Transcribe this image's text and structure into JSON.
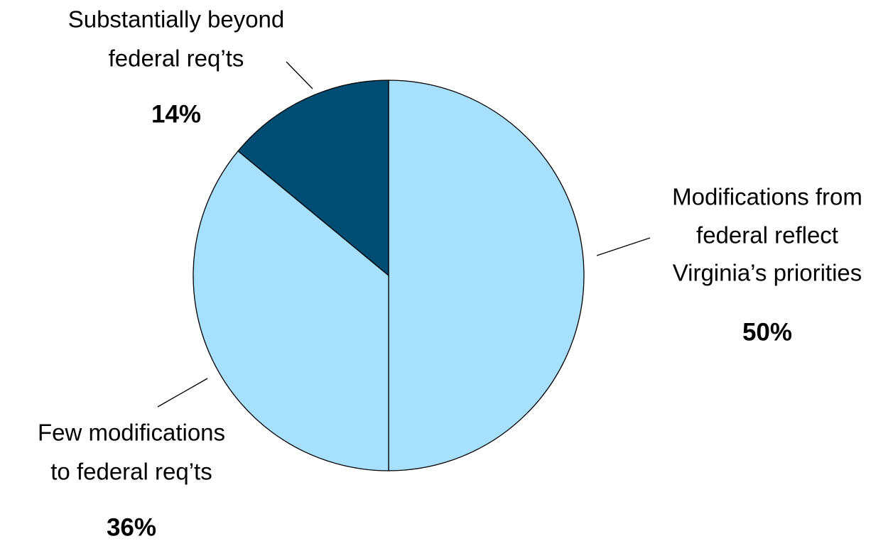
{
  "chart_data": {
    "type": "pie",
    "categories": [
      [
        "Modifications from",
        "federal reflect",
        "Virginia’s priorities"
      ],
      [
        "Few modifications",
        "to federal req’ts"
      ],
      [
        "Substantially beyond",
        "federal req’ts"
      ]
    ],
    "values": [
      50,
      36,
      14
    ],
    "value_labels": [
      "50%",
      "36%",
      "14%"
    ],
    "colors": [
      "#a6e0fc",
      "#a6e0fc",
      "#004d73"
    ]
  }
}
